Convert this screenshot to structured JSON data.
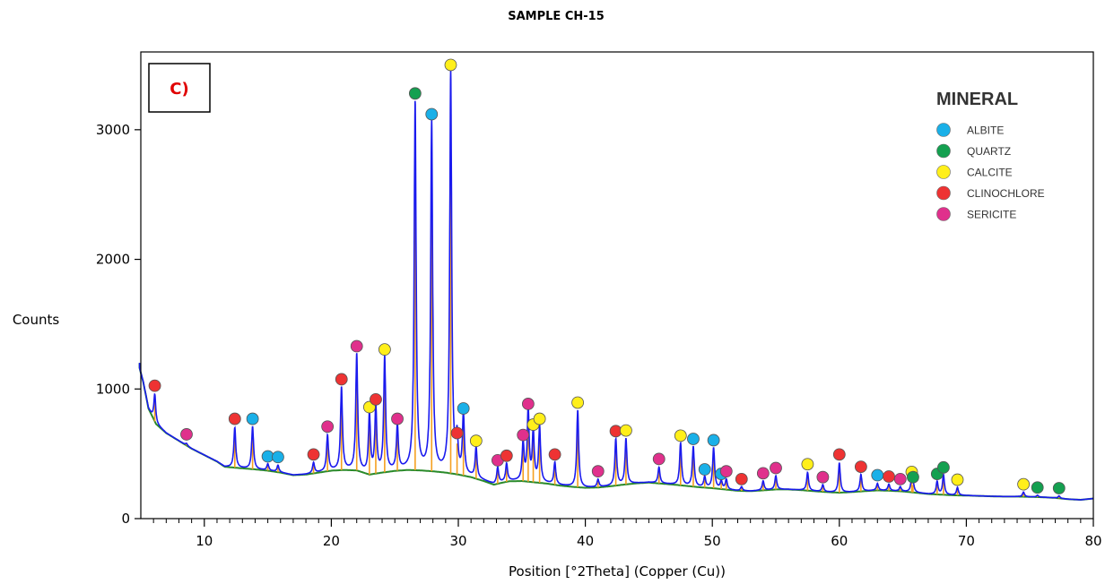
{
  "chart_data": {
    "type": "line",
    "title": "SAMPLE CH-15",
    "xlabel": "Position [°2Theta] (Copper (Cu))",
    "ylabel": "Counts",
    "panel_label": "C)",
    "xlim": [
      5,
      80
    ],
    "ylim": [
      0,
      3600
    ],
    "x_ticks": [
      10,
      20,
      30,
      40,
      50,
      60,
      70,
      80
    ],
    "y_ticks": [
      0,
      1000,
      2000,
      3000
    ],
    "grid": false,
    "legend": {
      "title": "MINERAL",
      "placement": "top-right",
      "entries": [
        {
          "name": "ALBITE",
          "color": "#1ab0e8"
        },
        {
          "name": "QUARTZ",
          "color": "#14a050"
        },
        {
          "name": "CALCITE",
          "color": "#ffef1a"
        },
        {
          "name": "CLINOCHLORE",
          "color": "#ee3333"
        },
        {
          "name": "SERICITE",
          "color": "#e0308c"
        }
      ]
    },
    "colors": {
      "pattern": "#1a1aee",
      "reference_lines": "#f5a020",
      "background": "#2a8a2a",
      "panel_label": "#e00000"
    },
    "background": [
      [
        4.8,
        1200
      ],
      [
        5.2,
        1050
      ],
      [
        5.6,
        850
      ],
      [
        6.2,
        730
      ],
      [
        7,
        660
      ],
      [
        8,
        600
      ],
      [
        9,
        540
      ],
      [
        10,
        490
      ],
      [
        11,
        440
      ],
      [
        11.6,
        400
      ],
      [
        12.5,
        392
      ],
      [
        14,
        380
      ],
      [
        15,
        370
      ],
      [
        16,
        355
      ],
      [
        17,
        335
      ],
      [
        18,
        340
      ],
      [
        19,
        355
      ],
      [
        20,
        370
      ],
      [
        21,
        375
      ],
      [
        22,
        372
      ],
      [
        23,
        340
      ],
      [
        24,
        355
      ],
      [
        25,
        368
      ],
      [
        26,
        375
      ],
      [
        27,
        372
      ],
      [
        28,
        365
      ],
      [
        29,
        355
      ],
      [
        30,
        340
      ],
      [
        31,
        320
      ],
      [
        32,
        290
      ],
      [
        32.8,
        262
      ],
      [
        33.5,
        278
      ],
      [
        34,
        288
      ],
      [
        35,
        290
      ],
      [
        36,
        280
      ],
      [
        37,
        270
      ],
      [
        38,
        255
      ],
      [
        39,
        245
      ],
      [
        40,
        238
      ],
      [
        41,
        240
      ],
      [
        42,
        250
      ],
      [
        43,
        262
      ],
      [
        44,
        272
      ],
      [
        45,
        278
      ],
      [
        46,
        270
      ],
      [
        47,
        262
      ],
      [
        48,
        252
      ],
      [
        49,
        242
      ],
      [
        50,
        235
      ],
      [
        51,
        225
      ],
      [
        52,
        215
      ],
      [
        53,
        212
      ],
      [
        54,
        218
      ],
      [
        55,
        225
      ],
      [
        56,
        225
      ],
      [
        57,
        220
      ],
      [
        58,
        212
      ],
      [
        59,
        205
      ],
      [
        60,
        200
      ],
      [
        61,
        205
      ],
      [
        62,
        212
      ],
      [
        63,
        218
      ],
      [
        64,
        215
      ],
      [
        65,
        210
      ],
      [
        66,
        200
      ],
      [
        67,
        190
      ],
      [
        68,
        185
      ],
      [
        69,
        180
      ],
      [
        70,
        178
      ],
      [
        71,
        175
      ],
      [
        72,
        172
      ],
      [
        73,
        170
      ],
      [
        74,
        170
      ],
      [
        75,
        168
      ],
      [
        76,
        165
      ],
      [
        77,
        160
      ],
      [
        78,
        150
      ],
      [
        79,
        145
      ],
      [
        80,
        155
      ]
    ],
    "peaks": [
      {
        "x": 6.1,
        "y": 960,
        "mineral": "CLINOCHLORE",
        "marker_y": 1025
      },
      {
        "x": 8.6,
        "y": 580,
        "mineral": "SERICITE",
        "marker_y": 650
      },
      {
        "x": 12.4,
        "y": 700,
        "mineral": "CLINOCHLORE",
        "marker_y": 770
      },
      {
        "x": 13.8,
        "y": 710,
        "mineral": "ALBITE",
        "marker_y": 770
      },
      {
        "x": 15.0,
        "y": 420,
        "mineral": "ALBITE",
        "marker_y": 480
      },
      {
        "x": 15.8,
        "y": 410,
        "mineral": "ALBITE",
        "marker_y": 475
      },
      {
        "x": 18.6,
        "y": 430,
        "mineral": "CLINOCHLORE",
        "marker_y": 495
      },
      {
        "x": 19.7,
        "y": 640,
        "mineral": "SERICITE",
        "marker_y": 710
      },
      {
        "x": 20.8,
        "y": 1010,
        "mineral": "CLINOCHLORE",
        "marker_y": 1075
      },
      {
        "x": 22.0,
        "y": 1265,
        "mineral": "SERICITE",
        "marker_y": 1330
      },
      {
        "x": 23.0,
        "y": 800,
        "mineral": "CALCITE",
        "marker_y": 860
      },
      {
        "x": 23.5,
        "y": 850,
        "mineral": "CLINOCHLORE",
        "marker_y": 920
      },
      {
        "x": 24.2,
        "y": 1240,
        "mineral": "CALCITE",
        "marker_y": 1305
      },
      {
        "x": 25.2,
        "y": 710,
        "mineral": "SERICITE",
        "marker_y": 770
      },
      {
        "x": 26.6,
        "y": 3210,
        "mineral": "QUARTZ",
        "marker_y": 3280
      },
      {
        "x": 27.9,
        "y": 3060,
        "mineral": "ALBITE",
        "marker_y": 3120
      },
      {
        "x": 29.4,
        "y": 3440,
        "mineral": "CALCITE",
        "marker_y": 3500
      },
      {
        "x": 29.9,
        "y": 600,
        "mineral": "CLINOCHLORE",
        "marker_y": 660
      },
      {
        "x": 30.4,
        "y": 790,
        "mineral": "ALBITE",
        "marker_y": 850
      },
      {
        "x": 31.4,
        "y": 540,
        "mineral": "CALCITE",
        "marker_y": 600
      },
      {
        "x": 33.1,
        "y": 390,
        "mineral": "SERICITE",
        "marker_y": 450
      },
      {
        "x": 33.8,
        "y": 420,
        "mineral": "CLINOCHLORE",
        "marker_y": 485
      },
      {
        "x": 35.1,
        "y": 580,
        "mineral": "SERICITE",
        "marker_y": 645
      },
      {
        "x": 35.5,
        "y": 825,
        "mineral": "SERICITE",
        "marker_y": 885
      },
      {
        "x": 35.9,
        "y": 660,
        "mineral": "CALCITE",
        "marker_y": 725
      },
      {
        "x": 36.4,
        "y": 700,
        "mineral": "CALCITE",
        "marker_y": 770
      },
      {
        "x": 37.6,
        "y": 430,
        "mineral": "CLINOCHLORE",
        "marker_y": 495
      },
      {
        "x": 39.4,
        "y": 835,
        "mineral": "CALCITE",
        "marker_y": 895
      },
      {
        "x": 41.0,
        "y": 300,
        "mineral": "SERICITE",
        "marker_y": 365
      },
      {
        "x": 42.4,
        "y": 610,
        "mineral": "CLINOCHLORE",
        "marker_y": 675
      },
      {
        "x": 43.2,
        "y": 615,
        "mineral": "CALCITE",
        "marker_y": 680
      },
      {
        "x": 45.8,
        "y": 395,
        "mineral": "SERICITE",
        "marker_y": 460
      },
      {
        "x": 47.5,
        "y": 580,
        "mineral": "CALCITE",
        "marker_y": 640
      },
      {
        "x": 48.5,
        "y": 555,
        "mineral": "ALBITE",
        "marker_y": 615
      },
      {
        "x": 49.4,
        "y": 320,
        "mineral": "ALBITE",
        "marker_y": 380
      },
      {
        "x": 50.1,
        "y": 545,
        "mineral": "ALBITE",
        "marker_y": 605
      },
      {
        "x": 50.7,
        "y": 290,
        "mineral": "ALBITE",
        "marker_y": 345
      },
      {
        "x": 51.1,
        "y": 300,
        "mineral": "SERICITE",
        "marker_y": 365
      },
      {
        "x": 52.3,
        "y": 245,
        "mineral": "CLINOCHLORE",
        "marker_y": 305
      },
      {
        "x": 54.0,
        "y": 290,
        "mineral": "SERICITE",
        "marker_y": 350
      },
      {
        "x": 55.0,
        "y": 330,
        "mineral": "SERICITE",
        "marker_y": 390
      },
      {
        "x": 57.5,
        "y": 355,
        "mineral": "CALCITE",
        "marker_y": 420
      },
      {
        "x": 58.7,
        "y": 260,
        "mineral": "SERICITE",
        "marker_y": 320
      },
      {
        "x": 60.0,
        "y": 430,
        "mineral": "CLINOCHLORE",
        "marker_y": 495
      },
      {
        "x": 61.7,
        "y": 340,
        "mineral": "CLINOCHLORE",
        "marker_y": 400
      },
      {
        "x": 63.0,
        "y": 270,
        "mineral": "ALBITE",
        "marker_y": 335
      },
      {
        "x": 63.9,
        "y": 265,
        "mineral": "CLINOCHLORE",
        "marker_y": 325
      },
      {
        "x": 64.8,
        "y": 245,
        "mineral": "SERICITE",
        "marker_y": 305
      },
      {
        "x": 65.7,
        "y": 300,
        "mineral": "CALCITE",
        "marker_y": 360
      },
      {
        "x": 65.8,
        "y": 265,
        "mineral": "QUARTZ",
        "marker_y": 320
      },
      {
        "x": 67.7,
        "y": 285,
        "mineral": "QUARTZ",
        "marker_y": 345
      },
      {
        "x": 68.2,
        "y": 335,
        "mineral": "QUARTZ",
        "marker_y": 395
      },
      {
        "x": 69.3,
        "y": 240,
        "mineral": "CALCITE",
        "marker_y": 300
      },
      {
        "x": 74.5,
        "y": 205,
        "mineral": "CALCITE",
        "marker_y": 265
      },
      {
        "x": 75.6,
        "y": 180,
        "mineral": "QUARTZ",
        "marker_y": 240
      },
      {
        "x": 77.3,
        "y": 175,
        "mineral": "QUARTZ",
        "marker_y": 235
      }
    ]
  }
}
